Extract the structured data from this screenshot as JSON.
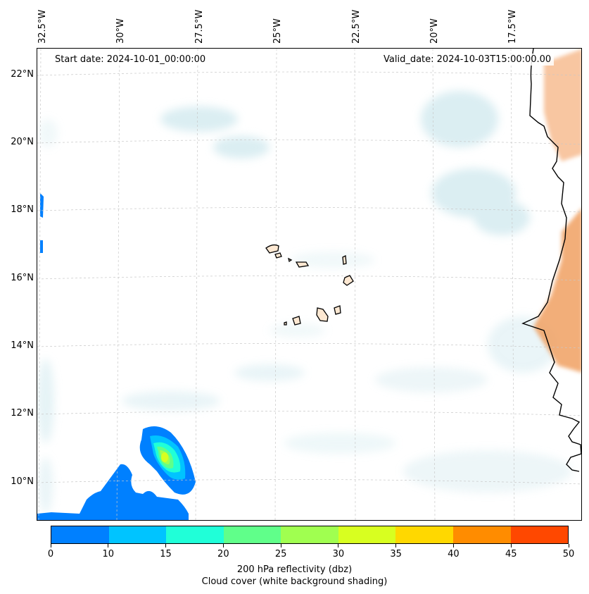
{
  "map": {
    "start_date": "Start date: 2024-10-01_00:00:00",
    "valid_date": "Valid_date: 2024-10-03T15:00:00.00",
    "region": "Cape Verde / West African coast",
    "longitude_labels": [
      "32.5°W",
      "30°W",
      "27.5°W",
      "25°W",
      "22.5°W",
      "20°W",
      "17.5°W"
    ],
    "latitude_labels": [
      "22°N",
      "20°N",
      "18°N",
      "16°N",
      "14°N",
      "12°N",
      "10°N"
    ]
  },
  "colorbar": {
    "ticks": [
      "0",
      "10",
      "15",
      "20",
      "25",
      "30",
      "35",
      "40",
      "45",
      "50"
    ],
    "colors": [
      "#0080ff",
      "#00c4ff",
      "#20ffd8",
      "#60ff8a",
      "#a0ff50",
      "#d8ff20",
      "#ffd800",
      "#ff8c00",
      "#ff4800"
    ],
    "label": "200 hPa reflectivity (dbz)",
    "sublabel": "Cloud cover (white background shading)"
  }
}
